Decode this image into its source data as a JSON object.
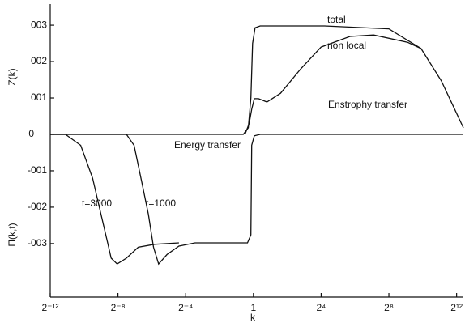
{
  "chart_data": {
    "type": "line",
    "y_labels": [
      "Z(k)",
      "Π(k,t)"
    ],
    "x_label": "k",
    "annotations": [
      "Enstrophy transfer",
      "Energy transfer"
    ],
    "xlim": [
      -12,
      12.4
    ],
    "xticks": [
      {
        "value": -12,
        "label": "2⁻¹²"
      },
      {
        "value": -8,
        "label": "2⁻⁸"
      },
      {
        "value": -4,
        "label": "2⁻⁴"
      },
      {
        "value": 0,
        "label": "1"
      },
      {
        "value": 4,
        "label": "2⁴"
      },
      {
        "value": 8,
        "label": "2⁸"
      },
      {
        "value": 12,
        "label": "2¹²"
      }
    ],
    "ylim": [
      -0.0447,
      0.0358
    ],
    "yticks": [
      {
        "value": 0.03,
        "label": "003"
      },
      {
        "value": 0.02,
        "label": "002"
      },
      {
        "value": 0.01,
        "label": "001"
      },
      0,
      {
        "value": -0.01,
        "label": "-001"
      },
      {
        "value": -0.02,
        "label": "-002"
      },
      {
        "value": -0.03,
        "label": "-003"
      }
    ],
    "series": [
      {
        "name": "total",
        "color": "#111111",
        "x": [
          -12,
          -0.6,
          -0.3,
          -0.15,
          -0.05,
          0.1,
          0.4,
          4.2,
          8,
          9.9,
          11.1,
          12.4
        ],
        "values": [
          0,
          0,
          0.0018,
          0.01,
          0.025,
          0.0293,
          0.0298,
          0.0298,
          0.029,
          0.0236,
          0.0147,
          0.0018
        ]
      },
      {
        "name": "non local",
        "color": "#111111",
        "x": [
          -0.5,
          -0.25,
          -0.1,
          0.05,
          0.3,
          0.8,
          1.6,
          2.8,
          4,
          5.7,
          7.1,
          9.1,
          9.9
        ],
        "values": [
          0,
          0.003,
          0.0069,
          0.0098,
          0.0098,
          0.0089,
          0.0113,
          0.018,
          0.024,
          0.0269,
          0.0273,
          0.0253,
          0.0236
        ]
      },
      {
        "name": "t=3000",
        "color": "#111111",
        "x": [
          -12,
          -11.1,
          -10.2,
          -9.5,
          -9.0,
          -8.6,
          -8.4,
          -8.05,
          -7.5,
          -6.8,
          -5.85,
          -4.4
        ],
        "values": [
          0,
          0,
          -0.003,
          -0.012,
          -0.022,
          -0.03,
          -0.034,
          -0.0356,
          -0.034,
          -0.031,
          -0.0302,
          -0.0298
        ]
      },
      {
        "name": "t=1000",
        "color": "#111111",
        "x": [
          -12,
          -7.5,
          -7.05,
          -6.6,
          -6.2,
          -5.9,
          -5.6,
          -5.1,
          -4.4,
          -3.45,
          -0.35,
          -0.15,
          -0.1,
          0.05,
          0.4,
          12.4
        ],
        "values": [
          0,
          0,
          -0.003,
          -0.013,
          -0.022,
          -0.031,
          -0.0356,
          -0.033,
          -0.0307,
          -0.0298,
          -0.0298,
          -0.0276,
          -0.003,
          -0.0004,
          0,
          0
        ]
      }
    ]
  }
}
